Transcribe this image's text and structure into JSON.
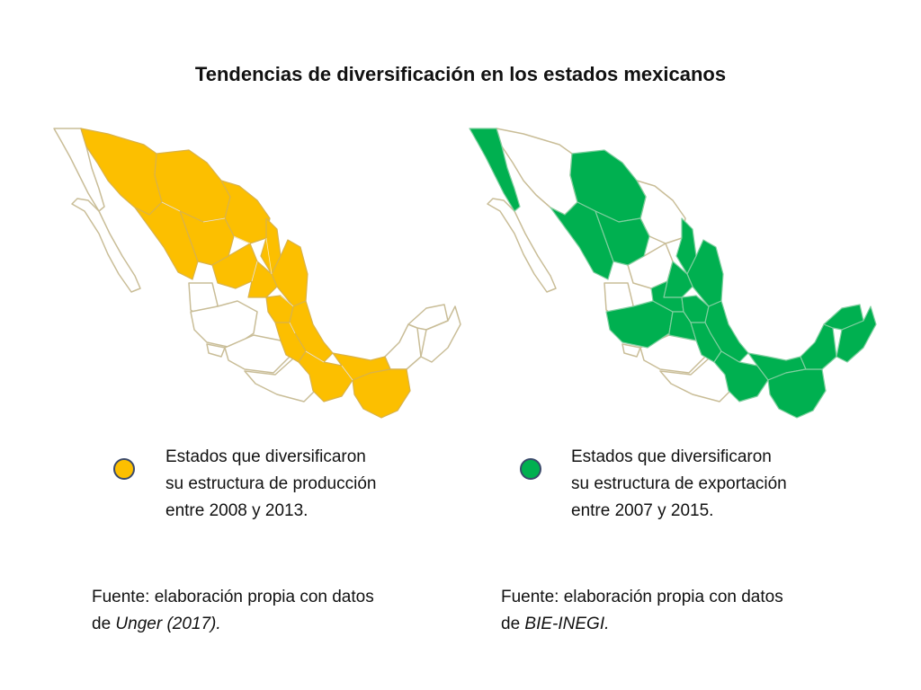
{
  "title": "Tendencias de diversificación en los estados mexicanos",
  "colors": {
    "production": "#fcbf00",
    "export": "#00b050",
    "border": "#c9bd97",
    "legend_outline": "#3b4a6b",
    "white": "#ffffff"
  },
  "legend_left": {
    "line1": "Estados que diversificaron",
    "line2": "su estructura de producción",
    "line3": "entre 2008 y 2013."
  },
  "legend_right": {
    "line1": "Estados que diversificaron",
    "line2": "su estructura de exportación",
    "line3": "entre 2007 y 2015."
  },
  "source_left": {
    "line1": "Fuente: elaboración propia con datos",
    "prefix": "de ",
    "ref": "Unger (2017)."
  },
  "source_right": {
    "line1": "Fuente: elaboración propia con datos",
    "prefix": "de ",
    "ref": "BIE-INEGI."
  }
}
